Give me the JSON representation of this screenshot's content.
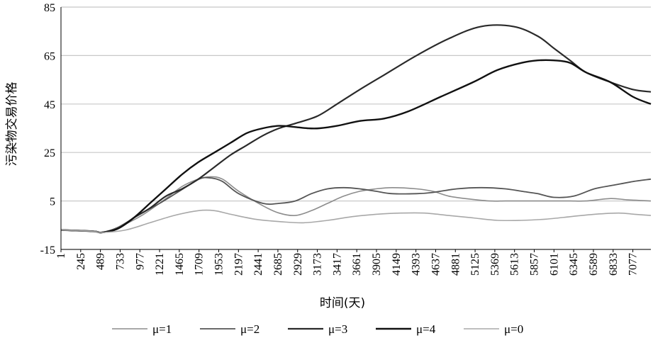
{
  "chart_data": {
    "type": "line",
    "xlabel": "时间(天)",
    "ylabel": "污染物交易价格",
    "ylim": [
      -15,
      85
    ],
    "yticks": [
      -15,
      5,
      25,
      45,
      65,
      85
    ],
    "xlim": [
      1,
      7300
    ],
    "xticks": [
      1,
      245,
      489,
      733,
      977,
      1221,
      1465,
      1709,
      1953,
      2197,
      2441,
      2685,
      2929,
      3173,
      3417,
      3661,
      3905,
      4149,
      4393,
      4637,
      4881,
      5125,
      5369,
      5613,
      5857,
      6101,
      6345,
      6589,
      6833,
      7077
    ],
    "grid": "horizontal",
    "legend_position": "bottom",
    "series": [
      {
        "name": "μ=1",
        "color": "#8c8c8c",
        "x": [
          1,
          400,
          500,
          700,
          1000,
          1300,
          1500,
          1700,
          1850,
          2000,
          2200,
          2500,
          2700,
          2900,
          3100,
          3300,
          3500,
          3700,
          3900,
          4100,
          4400,
          4600,
          4800,
          5000,
          5300,
          5500,
          5700,
          5900,
          6100,
          6300,
          6500,
          6800,
          7000,
          7300
        ],
        "y": [
          -7,
          -7.5,
          -8,
          -6,
          -1,
          6,
          11,
          14,
          15,
          14,
          9,
          3,
          0,
          -1,
          1,
          4,
          7,
          9,
          10,
          10.5,
          10,
          9,
          7,
          6,
          5,
          5,
          5,
          5,
          5,
          5,
          5,
          6,
          5.5,
          5
        ]
      },
      {
        "name": "μ=2",
        "color": "#555555",
        "x": [
          1,
          400,
          500,
          700,
          1000,
          1221,
          1465,
          1709,
          1850,
          2000,
          2200,
          2500,
          2700,
          2900,
          3100,
          3300,
          3500,
          3700,
          3900,
          4100,
          4400,
          4600,
          4900,
          5200,
          5500,
          5700,
          5900,
          6100,
          6345,
          6600,
          6833,
          7077,
          7300
        ],
        "y": [
          -7,
          -7.5,
          -8,
          -6,
          0,
          4,
          9,
          14,
          14.5,
          13,
          8,
          4,
          4,
          5,
          8,
          10,
          10.5,
          10,
          9,
          8,
          8,
          8.5,
          10,
          10.5,
          10,
          9,
          8,
          6.5,
          7,
          10,
          11.5,
          13,
          14
        ]
      },
      {
        "name": "μ=3",
        "color": "#2a2a2a",
        "x": [
          1,
          400,
          500,
          700,
          900,
          1100,
          1300,
          1500,
          1700,
          1900,
          2100,
          2300,
          2500,
          2700,
          2900,
          3173,
          3417,
          3700,
          4000,
          4400,
          4800,
          5200,
          5600,
          5900,
          6100,
          6300,
          6500,
          6800,
          7077,
          7300
        ],
        "y": [
          -7,
          -7.5,
          -8,
          -6.5,
          -2,
          2,
          7,
          10,
          14,
          19,
          24,
          28,
          32,
          35,
          37,
          40,
          45,
          51,
          57,
          65,
          72,
          77,
          77,
          73,
          68,
          63,
          58,
          54,
          51,
          50
        ]
      },
      {
        "name": "μ=4",
        "color": "#111111",
        "x": [
          1,
          400,
          500,
          700,
          900,
          1100,
          1300,
          1500,
          1700,
          1900,
          2100,
          2300,
          2500,
          2700,
          2900,
          3050,
          3200,
          3417,
          3700,
          4000,
          4300,
          4700,
          5100,
          5400,
          5700,
          5900,
          6100,
          6300,
          6500,
          6800,
          7077,
          7300
        ],
        "y": [
          -7,
          -7.5,
          -8,
          -6.5,
          -2,
          4,
          10,
          16,
          21,
          25,
          29,
          33,
          35,
          36,
          35.5,
          35,
          35,
          36,
          38,
          39,
          42,
          48,
          54,
          59,
          62,
          63,
          63,
          62,
          58,
          54,
          48,
          45
        ]
      },
      {
        "name": "μ=0",
        "color": "#a8a8a8",
        "x": [
          1,
          400,
          500,
          800,
          1100,
          1400,
          1700,
          1900,
          2100,
          2400,
          2700,
          3000,
          3300,
          3600,
          3900,
          4200,
          4500,
          4800,
          5100,
          5400,
          5700,
          6000,
          6300,
          6600,
          6900,
          7100,
          7300
        ],
        "y": [
          -7,
          -7.5,
          -8,
          -7,
          -4,
          -1,
          1,
          1,
          -0.5,
          -2.5,
          -3.5,
          -4,
          -3,
          -1.5,
          -0.5,
          0,
          0,
          -1,
          -2,
          -3,
          -3,
          -2.5,
          -1.5,
          -0.5,
          0,
          -0.5,
          -1
        ]
      }
    ]
  }
}
